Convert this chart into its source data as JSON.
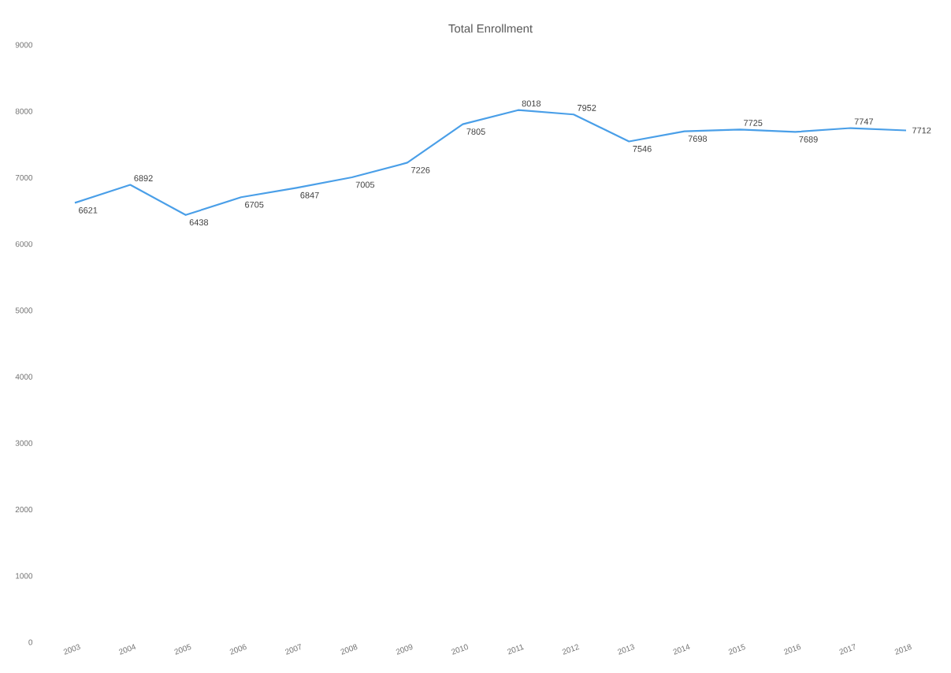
{
  "chart_data": {
    "type": "line",
    "title": "Total Enrollment",
    "categories": [
      "2003",
      "2004",
      "2005",
      "2006",
      "2007",
      "2008",
      "2009",
      "2010",
      "2011",
      "2012",
      "2013",
      "2014",
      "2015",
      "2016",
      "2017",
      "2018"
    ],
    "values": [
      6621,
      6892,
      6438,
      6705,
      6847,
      7005,
      7226,
      7805,
      8018,
      7952,
      7546,
      7698,
      7725,
      7689,
      7747,
      7712
    ],
    "color": "#4a9fe8",
    "ylim": [
      0,
      9000
    ],
    "yticks": [
      0,
      1000,
      2000,
      3000,
      4000,
      5000,
      6000,
      7000,
      8000,
      9000
    ],
    "data_labels": true
  }
}
